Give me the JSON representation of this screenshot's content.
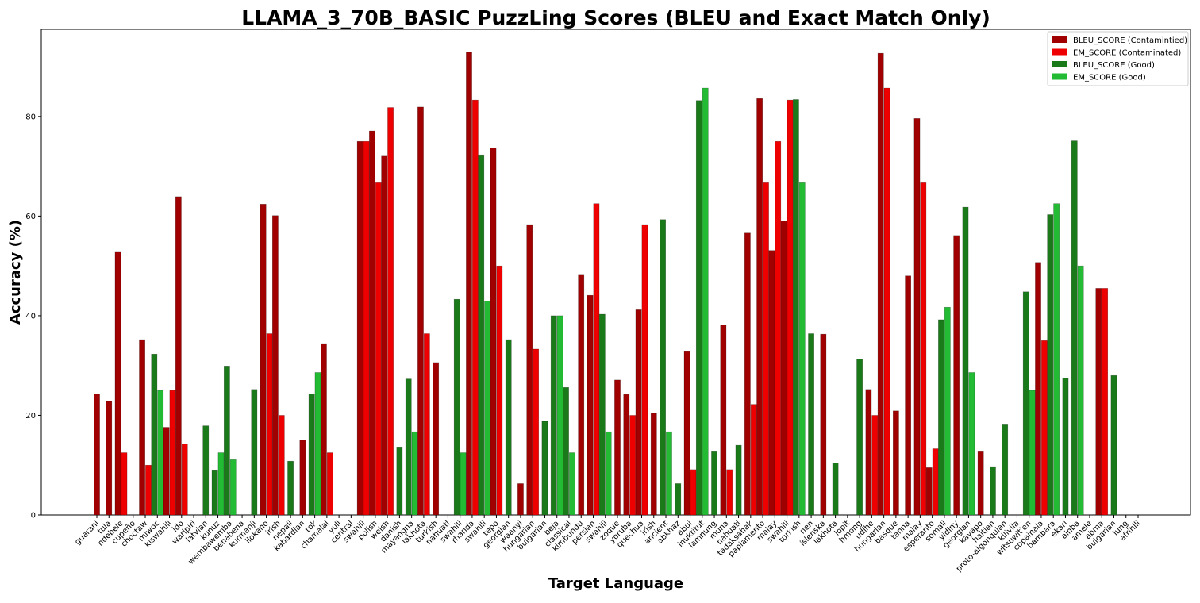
{
  "chart_data": {
    "type": "bar",
    "title": "LLAMA_3_70B_BASIC PuzzLing Scores (BLEU and Exact Match Only)",
    "xlabel": "Target Language",
    "ylabel": "Accuracy (%)",
    "ylim": [
      0,
      97.5
    ],
    "yticks": [
      0,
      20,
      40,
      60,
      80
    ],
    "grid": false,
    "legend_position": "top-right",
    "legend": [
      {
        "label": "BLEU_SCORE (Contamintied)",
        "color": "#a00000"
      },
      {
        "label": "EM_SCORE (Contaminated)",
        "color": "#ee0000"
      },
      {
        "label": "BLEU_SCORE (Good)",
        "color": "#1a7a1a"
      },
      {
        "label": "EM_SCORE (Good)",
        "color": "#22bb33"
      }
    ],
    "categories": [
      "guarani",
      "tula",
      "ndebele",
      "cupeño",
      "choctaw",
      "miwoc",
      "kiswahili",
      "ido",
      "warlpiri",
      "latvian",
      "kunuz",
      "wembawemba",
      "benabena",
      "kurmanji",
      "ilokano",
      "irish",
      "nepali",
      "kabardian",
      "tok",
      "chamalal",
      "yuli",
      "central",
      "swahili",
      "polish",
      "welsh",
      "danish",
      "mayangna",
      "lakhota",
      "turkish",
      "nahuatl",
      "swahili",
      "rhanda",
      "swahili",
      "tepo",
      "georgian",
      "waanyi",
      "hungarian",
      "bulgarian",
      "beja",
      "classical",
      "kimbundu",
      "persian",
      "swahili",
      "zoque",
      "yoruba",
      "quechua",
      "irish",
      "ancient",
      "abkhaz",
      "abui",
      "inuktitut",
      "lamnung",
      "muna",
      "nahuatl",
      "tadaksahak",
      "papiamento",
      "malay",
      "swahili",
      "turkish",
      "nen",
      "íslenska",
      "lakhota",
      "lopit",
      "hmong",
      "udihe",
      "hungarian",
      "basque",
      "tanna",
      "malay",
      "esperanto",
      "somali",
      "yidiny",
      "georgian",
      "kayapo",
      "haitian",
      "proto-algonquian",
      "kilivila",
      "witsuwit'en",
      "copainala",
      "bambara",
      "ekari",
      "ainba",
      "amele",
      "abma",
      "bulgarian",
      "lung",
      "afrihili"
    ],
    "series": [
      {
        "name": "BLEU_SCORE (Contamintied)",
        "status": "contaminated",
        "metric": "BLEU",
        "values": [
          24.3,
          22.8,
          52.9,
          null,
          35.2,
          null,
          17.6,
          63.9,
          null,
          null,
          null,
          null,
          null,
          null,
          62.4,
          60.1,
          null,
          15.0,
          null,
          34.4,
          null,
          null,
          75.0,
          77.1,
          72.2,
          null,
          null,
          81.9,
          30.6,
          null,
          null,
          92.9,
          null,
          73.7,
          null,
          6.3,
          58.3,
          null,
          null,
          null,
          48.3,
          44.1,
          null,
          27.1,
          24.2,
          41.2,
          20.4,
          null,
          null,
          32.8,
          null,
          null,
          38.1,
          null,
          56.6,
          83.6,
          53.1,
          59.0,
          null,
          null,
          36.3,
          null,
          null,
          null,
          25.2,
          92.7,
          20.9,
          48.0,
          79.6,
          9.5,
          null,
          56.1,
          null,
          12.7,
          null,
          null,
          null,
          null,
          50.7,
          null,
          null,
          null,
          null,
          45.5,
          null,
          null,
          null
        ]
      },
      {
        "name": "EM_SCORE (Contaminated)",
        "status": "contaminated",
        "metric": "EM",
        "values": [
          null,
          null,
          12.5,
          null,
          10.0,
          null,
          25.0,
          14.3,
          null,
          null,
          null,
          null,
          null,
          null,
          36.4,
          20.0,
          null,
          null,
          null,
          12.5,
          null,
          null,
          75.0,
          66.7,
          81.8,
          null,
          null,
          36.4,
          null,
          null,
          null,
          83.3,
          null,
          50.0,
          null,
          null,
          33.3,
          null,
          null,
          null,
          null,
          62.5,
          null,
          null,
          20.0,
          58.3,
          null,
          null,
          null,
          9.1,
          null,
          null,
          9.1,
          null,
          22.2,
          66.7,
          75.0,
          83.3,
          null,
          null,
          null,
          null,
          null,
          null,
          20.0,
          85.7,
          null,
          null,
          66.7,
          13.3,
          null,
          null,
          null,
          null,
          null,
          null,
          null,
          null,
          35.0,
          null,
          null,
          null,
          null,
          45.5,
          null,
          null,
          null
        ]
      },
      {
        "name": "BLEU_SCORE (Good)",
        "status": "good",
        "metric": "BLEU",
        "values": [
          null,
          null,
          null,
          null,
          null,
          32.3,
          null,
          null,
          null,
          17.9,
          8.9,
          29.9,
          null,
          25.2,
          null,
          null,
          10.8,
          null,
          24.3,
          null,
          null,
          null,
          null,
          null,
          null,
          13.5,
          27.3,
          null,
          null,
          null,
          43.3,
          null,
          72.3,
          null,
          35.2,
          null,
          null,
          18.8,
          40.0,
          25.6,
          null,
          null,
          40.3,
          null,
          null,
          null,
          null,
          59.3,
          6.3,
          null,
          83.2,
          12.7,
          null,
          14.0,
          null,
          null,
          null,
          null,
          83.4,
          36.4,
          null,
          10.4,
          null,
          31.3,
          null,
          null,
          null,
          null,
          null,
          null,
          39.2,
          null,
          61.8,
          null,
          9.7,
          18.1,
          null,
          44.8,
          null,
          60.3,
          27.5,
          75.1,
          null,
          null,
          28.0,
          null,
          null
        ]
      },
      {
        "name": "EM_SCORE (Good)",
        "status": "good",
        "metric": "EM",
        "values": [
          null,
          null,
          null,
          null,
          null,
          25.0,
          null,
          null,
          null,
          null,
          12.5,
          11.1,
          null,
          null,
          null,
          null,
          null,
          null,
          28.6,
          null,
          null,
          null,
          null,
          null,
          null,
          null,
          16.7,
          null,
          null,
          null,
          12.5,
          null,
          42.9,
          null,
          null,
          null,
          null,
          null,
          40.0,
          12.5,
          null,
          null,
          16.7,
          null,
          null,
          null,
          null,
          16.7,
          null,
          null,
          85.7,
          null,
          null,
          null,
          null,
          null,
          null,
          null,
          66.7,
          null,
          null,
          null,
          null,
          null,
          null,
          null,
          null,
          null,
          null,
          null,
          41.7,
          null,
          28.6,
          null,
          null,
          null,
          null,
          25.0,
          null,
          62.5,
          null,
          50.0,
          null,
          null,
          null,
          null,
          null
        ]
      }
    ]
  }
}
